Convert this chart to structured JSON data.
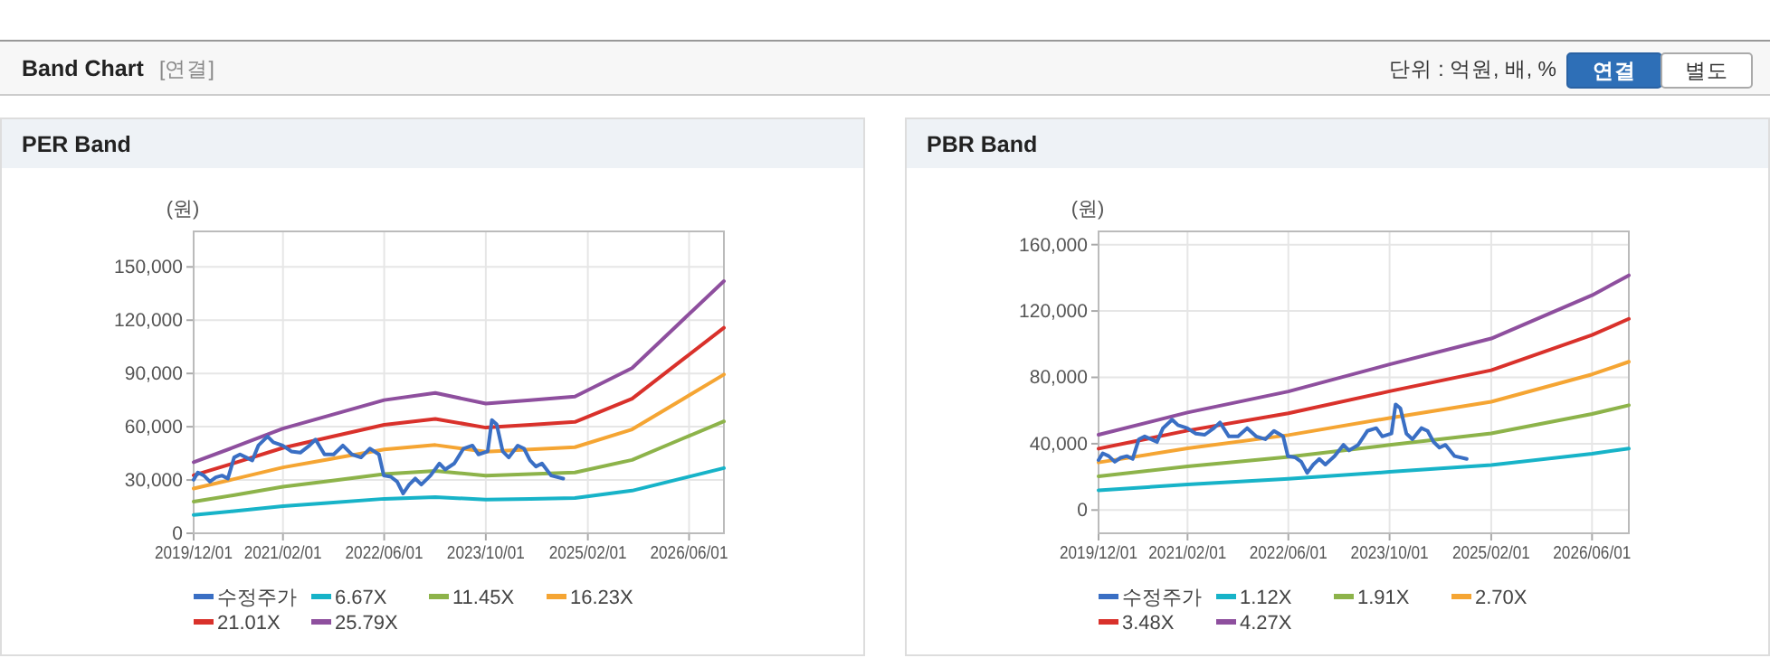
{
  "chart_data": [
    {
      "type": "other",
      "title": "Band Chart",
      "subtitle": "[연결]",
      "annotations": [
        "단위 : 억원, 배, %",
        "연결",
        "별도"
      ]
    },
    {
      "type": "line",
      "title": "PER Band",
      "ylabel": "(원)",
      "xlim": [
        "2019-12-01",
        "2026-11-15"
      ],
      "ylim": [
        0,
        170000
      ],
      "xticks": [
        {
          "value": "2019-12-01",
          "label": "2019/12/01"
        },
        {
          "value": "2021-02-01",
          "label": "2021/02/01"
        },
        {
          "value": "2022-06-01",
          "label": "2022/06/01"
        },
        {
          "value": "2023-10-01",
          "label": "2023/10/01"
        },
        {
          "value": "2025-02-01",
          "label": "2025/02/01"
        },
        {
          "value": "2026-06-01",
          "label": "2026/06/01"
        }
      ],
      "yticks": [
        {
          "value": 0,
          "label": "0"
        },
        {
          "value": 30000,
          "label": "30,000"
        },
        {
          "value": 60000,
          "label": "60,000"
        },
        {
          "value": 90000,
          "label": "90,000"
        },
        {
          "value": 120000,
          "label": "120,000"
        },
        {
          "value": 150000,
          "label": "150,000"
        }
      ],
      "grid": true,
      "legend": "bottom",
      "marker": "none",
      "series": [
        {
          "name": "수정주가",
          "color": "#3a6fc4",
          "x": [
            "2019-12-01",
            "2019-12-21",
            "2020-01-19",
            "2020-02-17",
            "2020-03-16",
            "2020-04-15",
            "2020-05-13",
            "2020-06-12",
            "2020-07-10",
            "2020-08-09",
            "2020-09-07",
            "2020-10-06",
            "2020-11-19",
            "2020-12-17",
            "2021-01-30",
            "2021-03-13",
            "2021-04-25",
            "2021-06-08",
            "2021-07-07",
            "2021-08-19",
            "2021-10-02",
            "2021-11-15",
            "2021-12-28",
            "2022-02-10",
            "2022-03-24",
            "2022-05-07",
            "2022-05-30",
            "2022-07-03",
            "2022-08-02",
            "2022-08-31",
            "2022-09-29",
            "2022-10-28",
            "2022-11-26",
            "2023-01-09",
            "2023-02-21",
            "2023-03-20",
            "2023-05-03",
            "2023-06-16",
            "2023-07-29",
            "2023-08-27",
            "2023-10-10",
            "2023-10-30",
            "2023-11-22",
            "2023-12-21",
            "2024-01-19",
            "2024-03-02",
            "2024-04-01",
            "2024-04-30",
            "2024-05-28",
            "2024-06-26",
            "2024-08-09",
            "2024-10-06"
          ],
          "values": [
            30100,
            34200,
            32500,
            29100,
            31500,
            32500,
            30800,
            42700,
            44400,
            42700,
            41000,
            49400,
            54500,
            51200,
            49400,
            46100,
            45400,
            49400,
            52800,
            44400,
            44400,
            49400,
            44400,
            42700,
            47700,
            44400,
            32500,
            31800,
            29100,
            22400,
            27400,
            30800,
            27400,
            32500,
            39300,
            35900,
            39300,
            47700,
            49400,
            44400,
            46100,
            63700,
            61300,
            46100,
            42700,
            49400,
            47700,
            41000,
            37600,
            39300,
            32500,
            30800
          ]
        },
        {
          "name": "6.67X",
          "color": "#17b3c8",
          "x": [
            "2019-12-01",
            "2020-06-01",
            "2021-02-01",
            "2021-09-01",
            "2022-06-01",
            "2023-02-01",
            "2023-10-01",
            "2024-05-01",
            "2024-12-01",
            "2025-09-01",
            "2026-05-01",
            "2026-11-15"
          ],
          "values": [
            10300,
            12400,
            15300,
            17100,
            19400,
            20400,
            18900,
            19400,
            19900,
            24000,
            31000,
            36700
          ]
        },
        {
          "name": "11.45X",
          "color": "#8db34a",
          "x": [
            "2019-12-01",
            "2020-06-01",
            "2021-02-01",
            "2021-09-01",
            "2022-06-01",
            "2023-02-01",
            "2023-10-01",
            "2024-05-01",
            "2024-12-01",
            "2025-09-01",
            "2026-05-01",
            "2026-11-15"
          ],
          "values": [
            17800,
            21300,
            26200,
            29300,
            33300,
            35100,
            32400,
            33300,
            34200,
            41300,
            53300,
            63000
          ]
        },
        {
          "name": "16.23X",
          "color": "#f5a533",
          "x": [
            "2019-12-01",
            "2020-06-01",
            "2021-02-01",
            "2021-09-01",
            "2022-06-01",
            "2023-02-01",
            "2023-10-01",
            "2024-05-01",
            "2024-12-01",
            "2025-09-01",
            "2026-05-01",
            "2026-11-15"
          ],
          "values": [
            25200,
            30200,
            37100,
            41500,
            47200,
            49700,
            45900,
            47200,
            48500,
            58500,
            75500,
            89400
          ]
        },
        {
          "name": "21.01X",
          "color": "#d9312b",
          "x": [
            "2019-12-01",
            "2020-06-01",
            "2021-02-01",
            "2021-09-01",
            "2022-06-01",
            "2023-02-01",
            "2023-10-01",
            "2024-05-01",
            "2024-12-01",
            "2025-09-01",
            "2026-05-01",
            "2026-11-15"
          ],
          "values": [
            32600,
            39100,
            48100,
            53800,
            61100,
            64400,
            59500,
            61100,
            62700,
            75800,
            97800,
            115700
          ]
        },
        {
          "name": "25.79X",
          "color": "#8e4f9e",
          "x": [
            "2019-12-01",
            "2020-06-01",
            "2021-02-01",
            "2021-09-01",
            "2022-06-01",
            "2023-02-01",
            "2023-10-01",
            "2024-05-01",
            "2024-12-01",
            "2025-09-01",
            "2026-05-01",
            "2026-11-15"
          ],
          "values": [
            40000,
            48000,
            59000,
            66000,
            75000,
            79000,
            73000,
            75000,
            77000,
            93000,
            120000,
            142000
          ]
        }
      ]
    },
    {
      "type": "line",
      "title": "PBR Band",
      "ylabel": "(원)",
      "xlim": [
        "2019-12-01",
        "2026-11-25"
      ],
      "ylim": [
        -14000,
        168000
      ],
      "xticks": [
        {
          "value": "2019-12-01",
          "label": "2019/12/01"
        },
        {
          "value": "2021-02-01",
          "label": "2021/02/01"
        },
        {
          "value": "2022-06-01",
          "label": "2022/06/01"
        },
        {
          "value": "2023-10-01",
          "label": "2023/10/01"
        },
        {
          "value": "2025-02-01",
          "label": "2025/02/01"
        },
        {
          "value": "2026-06-01",
          "label": "2026/06/01"
        }
      ],
      "yticks": [
        {
          "value": 0,
          "label": "0"
        },
        {
          "value": 40000,
          "label": "40,000"
        },
        {
          "value": 80000,
          "label": "80,000"
        },
        {
          "value": 120000,
          "label": "120,000"
        },
        {
          "value": 160000,
          "label": "160,000"
        }
      ],
      "grid": true,
      "legend": "bottom",
      "marker": "none",
      "series": [
        {
          "name": "수정주가",
          "color": "#3a6fc4",
          "x": [
            "2019-12-01",
            "2019-12-21",
            "2020-01-19",
            "2020-02-17",
            "2020-03-16",
            "2020-04-15",
            "2020-05-13",
            "2020-06-12",
            "2020-07-10",
            "2020-08-09",
            "2020-09-07",
            "2020-10-06",
            "2020-11-19",
            "2020-12-17",
            "2021-01-30",
            "2021-03-13",
            "2021-04-25",
            "2021-06-08",
            "2021-07-07",
            "2021-08-19",
            "2021-10-02",
            "2021-11-15",
            "2021-12-28",
            "2022-02-10",
            "2022-03-24",
            "2022-05-07",
            "2022-05-30",
            "2022-07-03",
            "2022-08-02",
            "2022-08-31",
            "2022-09-29",
            "2022-10-28",
            "2022-11-26",
            "2023-01-09",
            "2023-02-21",
            "2023-03-20",
            "2023-05-03",
            "2023-06-16",
            "2023-07-29",
            "2023-08-27",
            "2023-10-10",
            "2023-10-30",
            "2023-11-22",
            "2023-12-21",
            "2024-01-19",
            "2024-03-02",
            "2024-04-01",
            "2024-04-30",
            "2024-05-28",
            "2024-06-26",
            "2024-08-09",
            "2024-10-06"
          ],
          "values": [
            30100,
            34200,
            32500,
            29100,
            31500,
            32500,
            30800,
            42700,
            44400,
            42700,
            41000,
            49400,
            54500,
            51200,
            49400,
            46100,
            45400,
            49400,
            52800,
            44400,
            44400,
            49400,
            44400,
            42700,
            47700,
            44400,
            32500,
            31800,
            29100,
            22400,
            27400,
            30800,
            27400,
            32500,
            39300,
            35900,
            39300,
            47700,
            49400,
            44400,
            46100,
            63700,
            61300,
            46100,
            42700,
            49400,
            47700,
            41000,
            37600,
            39300,
            32500,
            30800
          ]
        },
        {
          "name": "1.12X",
          "color": "#17b3c8",
          "x": [
            "2019-12-01",
            "2021-02-01",
            "2022-06-01",
            "2023-10-01",
            "2025-02-01",
            "2026-06-01",
            "2026-11-25"
          ],
          "values": [
            11900,
            15400,
            18800,
            23000,
            27100,
            34000,
            37100
          ]
        },
        {
          "name": "1.91X",
          "color": "#8db34a",
          "x": [
            "2019-12-01",
            "2021-02-01",
            "2022-06-01",
            "2023-10-01",
            "2025-02-01",
            "2026-06-01",
            "2026-11-25"
          ],
          "values": [
            20300,
            26300,
            32000,
            39200,
            46200,
            57900,
            63200
          ]
        },
        {
          "name": "2.70X",
          "color": "#f5a533",
          "x": [
            "2019-12-01",
            "2021-02-01",
            "2022-06-01",
            "2023-10-01",
            "2025-02-01",
            "2026-06-01",
            "2026-11-25"
          ],
          "values": [
            28700,
            37200,
            45200,
            55500,
            65300,
            81800,
            89400
          ]
        },
        {
          "name": "3.48X",
          "color": "#d9312b",
          "x": [
            "2019-12-01",
            "2021-02-01",
            "2022-06-01",
            "2023-10-01",
            "2025-02-01",
            "2026-06-01",
            "2026-11-25"
          ],
          "values": [
            37000,
            47900,
            58300,
            71600,
            84300,
            105500,
            115300
          ]
        },
        {
          "name": "4.27X",
          "color": "#8e4f9e",
          "x": [
            "2019-12-01",
            "2021-02-01",
            "2022-06-01",
            "2023-10-01",
            "2025-02-01",
            "2026-06-01",
            "2026-11-25"
          ],
          "values": [
            45400,
            58800,
            71500,
            87800,
            103400,
            129500,
            141500
          ]
        }
      ]
    }
  ]
}
